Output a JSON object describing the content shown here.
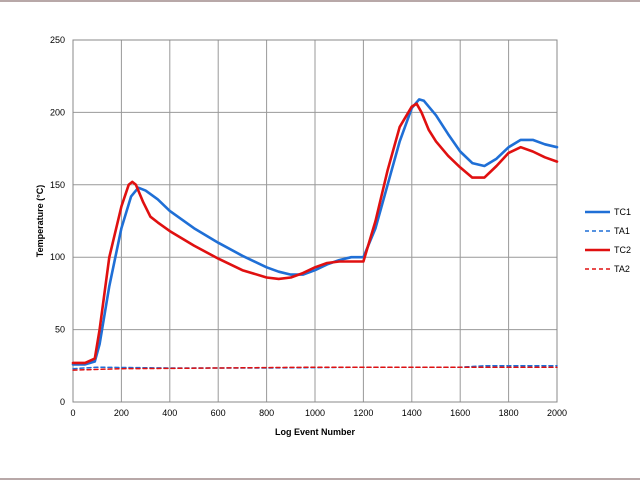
{
  "chart_data": {
    "type": "line",
    "title": "",
    "xlabel": "Log Event Number",
    "ylabel": "Temperature (°C)",
    "xlim": [
      0,
      2000
    ],
    "ylim": [
      0,
      250
    ],
    "xticks": [
      0,
      200,
      400,
      600,
      800,
      1000,
      1200,
      1400,
      1600,
      1800,
      2000
    ],
    "yticks": [
      0,
      50,
      100,
      150,
      200,
      250
    ],
    "grid": true,
    "legend_position": "right",
    "series": [
      {
        "name": "TC1",
        "color": "#1f6fd6",
        "dash": "solid",
        "x": [
          0,
          50,
          90,
          110,
          150,
          200,
          240,
          270,
          300,
          350,
          400,
          500,
          600,
          700,
          800,
          850,
          900,
          950,
          1000,
          1050,
          1100,
          1150,
          1200,
          1250,
          1300,
          1350,
          1400,
          1430,
          1450,
          1500,
          1550,
          1600,
          1650,
          1700,
          1750,
          1800,
          1850,
          1900,
          1950,
          2000
        ],
        "y": [
          26,
          26,
          28,
          40,
          80,
          120,
          142,
          148,
          146,
          140,
          132,
          120,
          110,
          101,
          93,
          90,
          88,
          88,
          91,
          95,
          98,
          100,
          100,
          120,
          150,
          180,
          203,
          209,
          208,
          198,
          185,
          173,
          165,
          163,
          168,
          176,
          181,
          181,
          178,
          176
        ]
      },
      {
        "name": "TA1",
        "color": "#1f6fd6",
        "dash": "dashed",
        "x": [
          0,
          100,
          400,
          800,
          1200,
          1600,
          1700,
          2000
        ],
        "y": [
          23,
          24,
          23.5,
          23.5,
          24,
          24,
          25,
          25
        ]
      },
      {
        "name": "TC2",
        "color": "#e01010",
        "dash": "solid",
        "x": [
          0,
          50,
          90,
          110,
          150,
          200,
          230,
          245,
          260,
          290,
          320,
          350,
          400,
          500,
          600,
          700,
          800,
          850,
          900,
          950,
          1000,
          1050,
          1100,
          1150,
          1200,
          1250,
          1300,
          1350,
          1400,
          1420,
          1440,
          1470,
          1500,
          1550,
          1600,
          1650,
          1700,
          1750,
          1800,
          1850,
          1900,
          1950,
          2000
        ],
        "y": [
          27,
          27,
          30,
          50,
          100,
          135,
          150,
          152,
          150,
          138,
          128,
          124,
          118,
          108,
          99,
          91,
          86,
          85,
          86,
          89,
          93,
          96,
          97,
          97,
          97,
          125,
          160,
          190,
          204,
          206,
          200,
          188,
          180,
          170,
          162,
          155,
          155,
          163,
          172,
          176,
          173,
          169,
          166
        ]
      },
      {
        "name": "TA2",
        "color": "#e01010",
        "dash": "dashed",
        "x": [
          0,
          200,
          600,
          1000,
          1400,
          1800,
          2000
        ],
        "y": [
          22,
          23,
          23.5,
          24,
          24,
          24,
          24
        ]
      }
    ]
  }
}
